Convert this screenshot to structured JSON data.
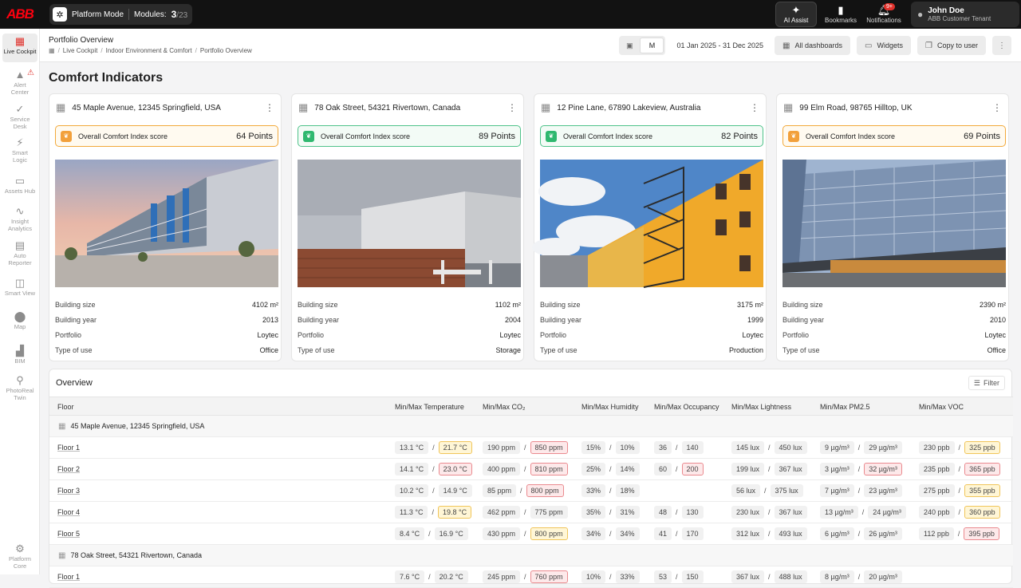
{
  "topbar": {
    "logo": "ABB",
    "platform_mode": "Platform Mode",
    "modules_label": "Modules:",
    "modules_current": "3",
    "modules_total": "/23",
    "ai_assist": "AI Assist",
    "bookmarks": "Bookmarks",
    "notifications": "Notifications",
    "notifications_badge": "9+",
    "user_name": "John Doe",
    "user_tenant": "ABB Customer Tenant"
  },
  "sidebar": {
    "items": [
      {
        "label": "Live Cockpit",
        "icon": "grid-icon"
      },
      {
        "label": "Alert Center",
        "icon": "alert-icon"
      },
      {
        "label": "Service Desk",
        "icon": "wrench-icon"
      },
      {
        "label": "Smart Logic",
        "icon": "bolt-icon"
      },
      {
        "label": "Assets Hub",
        "icon": "devices-icon"
      },
      {
        "label": "Insight Analytics",
        "icon": "chart-icon"
      },
      {
        "label": "Auto Reporter",
        "icon": "report-icon"
      },
      {
        "label": "Smart View",
        "icon": "view-icon"
      },
      {
        "label": "Map",
        "icon": "pin-icon"
      },
      {
        "label": "BIM",
        "icon": "building-icon"
      },
      {
        "label": "PhotoReal Twin",
        "icon": "twin-icon"
      },
      {
        "label": "Platform Core",
        "icon": "chip-icon"
      }
    ]
  },
  "header": {
    "title": "Portfolio Overview",
    "breadcrumb": [
      "Live Cockpit",
      "Indoor Environment & Comfort",
      "Portfolio Overview"
    ],
    "period_selected": "M",
    "date_range": "01 Jan 2025 - 31 Dec 2025",
    "all_dashboards": "All dashboards",
    "widgets": "Widgets",
    "copy_to_user": "Copy to user"
  },
  "section_title": "Comfort Indicators",
  "score_label": "Overall Comfort Index score",
  "fact_labels": {
    "size": "Building size",
    "year": "Building year",
    "portfolio": "Portfolio",
    "use": "Type of use"
  },
  "buildings": [
    {
      "address": "45 Maple Avenue, 12345 Springfield, USA",
      "score": "64 Points",
      "score_status": "orange",
      "size": "4102 m²",
      "year": "2013",
      "portfolio": "Loytec",
      "use": "Office"
    },
    {
      "address": "78 Oak Street, 54321 Rivertown, Canada",
      "score": "89 Points",
      "score_status": "green",
      "size": "1102 m²",
      "year": "2004",
      "portfolio": "Loytec",
      "use": "Storage"
    },
    {
      "address": "12 Pine Lane, 67890 Lakeview, Australia",
      "score": "82 Points",
      "score_status": "green",
      "size": "3175 m²",
      "year": "1999",
      "portfolio": "Loytec",
      "use": "Production"
    },
    {
      "address": "99 Elm Road, 98765 Hilltop, UK",
      "score": "69 Points",
      "score_status": "orange",
      "size": "2390 m²",
      "year": "2010",
      "portfolio": "Loytec",
      "use": "Office"
    }
  ],
  "overview": {
    "title": "Overview",
    "filter": "Filter",
    "columns": [
      "Floor",
      "Min/Max Temperature",
      "Min/Max CO₂",
      "Min/Max Humidity",
      "Min/Max Occupancy",
      "Min/Max Lightness",
      "Min/Max PM2.5",
      "Min/Max VOC"
    ],
    "groups": [
      {
        "name": "45 Maple Avenue, 12345 Springfield, USA",
        "rows": [
          {
            "floor": "Floor 1",
            "cells": [
              [
                "13.1 °C",
                "",
                "21.7 °C",
                "warn"
              ],
              [
                "190 ppm",
                "",
                "850 ppm",
                "bad"
              ],
              [
                "15%",
                "",
                "10%",
                ""
              ],
              [
                "36",
                "",
                "140",
                ""
              ],
              [
                "145 lux",
                "",
                "450 lux",
                ""
              ],
              [
                "9 µg/m³",
                "",
                "29 µg/m³",
                ""
              ],
              [
                "230 ppb",
                "",
                "325 ppb",
                "warn"
              ]
            ]
          },
          {
            "floor": "Floor 2",
            "cells": [
              [
                "14.1 °C",
                "",
                "23.0 °C",
                "bad"
              ],
              [
                "400 ppm",
                "",
                "810 ppm",
                "bad"
              ],
              [
                "25%",
                "",
                "14%",
                ""
              ],
              [
                "60",
                "",
                "200",
                "bad"
              ],
              [
                "199 lux",
                "",
                "367 lux",
                ""
              ],
              [
                "3 µg/m³",
                "",
                "32 µg/m³",
                "bad"
              ],
              [
                "235 ppb",
                "",
                "365 ppb",
                "bad"
              ]
            ]
          },
          {
            "floor": "Floor 3",
            "cells": [
              [
                "10.2 °C",
                "",
                "14.9 °C",
                ""
              ],
              [
                "85 ppm",
                "",
                "800 ppm",
                "bad"
              ],
              [
                "33%",
                "",
                "18%",
                ""
              ],
              null,
              [
                "56 lux",
                "",
                "375 lux",
                ""
              ],
              [
                "7 µg/m³",
                "",
                "23 µg/m³",
                ""
              ],
              [
                "275 ppb",
                "",
                "355 ppb",
                "warn"
              ]
            ]
          },
          {
            "floor": "Floor 4",
            "cells": [
              [
                "11.3 °C",
                "",
                "19.8 °C",
                "warn"
              ],
              [
                "462 ppm",
                "",
                "775 ppm",
                ""
              ],
              [
                "35%",
                "",
                "31%",
                ""
              ],
              [
                "48",
                "",
                "130",
                ""
              ],
              [
                "230 lux",
                "",
                "367 lux",
                ""
              ],
              [
                "13 µg/m³",
                "",
                "24 µg/m³",
                ""
              ],
              [
                "240 ppb",
                "",
                "360 ppb",
                "warn"
              ]
            ]
          },
          {
            "floor": "Floor 5",
            "cells": [
              [
                "8.4 °C",
                "",
                "16.9 °C",
                ""
              ],
              [
                "430 ppm",
                "",
                "800 ppm",
                "warn"
              ],
              [
                "34%",
                "",
                "34%",
                ""
              ],
              [
                "41",
                "",
                "170",
                ""
              ],
              [
                "312 lux",
                "",
                "493 lux",
                ""
              ],
              [
                "6 µg/m³",
                "",
                "26 µg/m³",
                ""
              ],
              [
                "112 ppb",
                "",
                "395 ppb",
                "bad"
              ]
            ]
          }
        ]
      },
      {
        "name": "78 Oak Street, 54321 Rivertown, Canada",
        "rows": [
          {
            "floor": "Floor 1",
            "cells": [
              [
                "7.6 °C",
                "",
                "20.2 °C",
                ""
              ],
              [
                "245 ppm",
                "",
                "760 ppm",
                "bad"
              ],
              [
                "10%",
                "",
                "33%",
                ""
              ],
              [
                "53",
                "",
                "150",
                ""
              ],
              [
                "367 lux",
                "",
                "488 lux",
                ""
              ],
              [
                "8 µg/m³",
                "",
                "20 µg/m³",
                ""
              ],
              null
            ]
          }
        ]
      }
    ]
  }
}
